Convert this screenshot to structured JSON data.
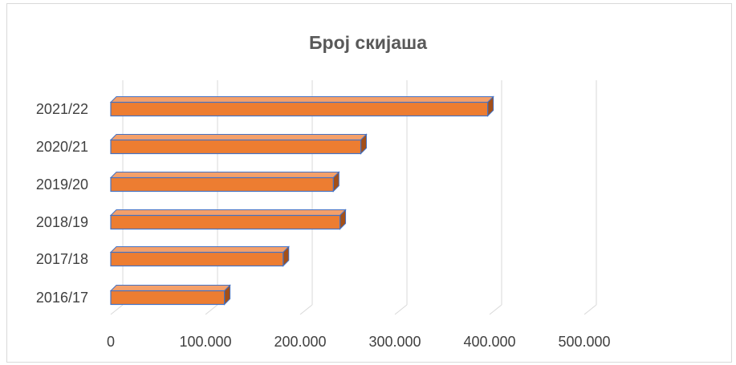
{
  "chart_data": {
    "type": "bar",
    "orientation": "horizontal",
    "style": "3d",
    "title": "Број скијаша",
    "xlabel": "",
    "ylabel": "",
    "categories": [
      "2016/17",
      "2017/18",
      "2018/19",
      "2019/20",
      "2020/21",
      "2021/22"
    ],
    "series": [
      {
        "values": [
          120000,
          182000,
          242000,
          235000,
          264000,
          398000
        ]
      }
    ],
    "xlim": [
      0,
      500000
    ],
    "ticks": [
      0,
      100000,
      200000,
      300000,
      400000,
      500000
    ],
    "tick_labels": [
      "0",
      "100.000",
      "200.000",
      "300.000",
      "400.000",
      "500.000"
    ],
    "grid": true,
    "legend": "none",
    "colors": {
      "bar_front": "#ed7d31",
      "bar_top": "#f4a06a",
      "bar_side": "#a34f18",
      "bar_outline": "#4472c4",
      "gridline": "#d9d9d9",
      "text": "#595959"
    }
  }
}
